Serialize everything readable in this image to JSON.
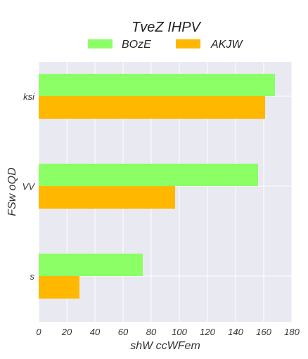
{
  "chart_data": {
    "type": "bar",
    "orientation": "horizontal",
    "title": "TveZ IHPV",
    "xlabel": "shW ccWFem",
    "ylabel": "FSw oQD",
    "categories": [
      "ksi",
      "VV",
      "s"
    ],
    "series": [
      {
        "name": "BOzE",
        "color": "#8cff66",
        "values": [
          168,
          156,
          74
        ]
      },
      {
        "name": "AKJW",
        "color": "#ffb700",
        "values": [
          161,
          97,
          29
        ]
      }
    ],
    "xlim": [
      0,
      180
    ],
    "xticks": [
      0,
      20,
      40,
      60,
      80,
      100,
      120,
      140,
      160,
      180
    ],
    "grid": true,
    "legend_position": "top-center",
    "background_color": "#e9e9f1",
    "grid_color": "#ffffff"
  }
}
